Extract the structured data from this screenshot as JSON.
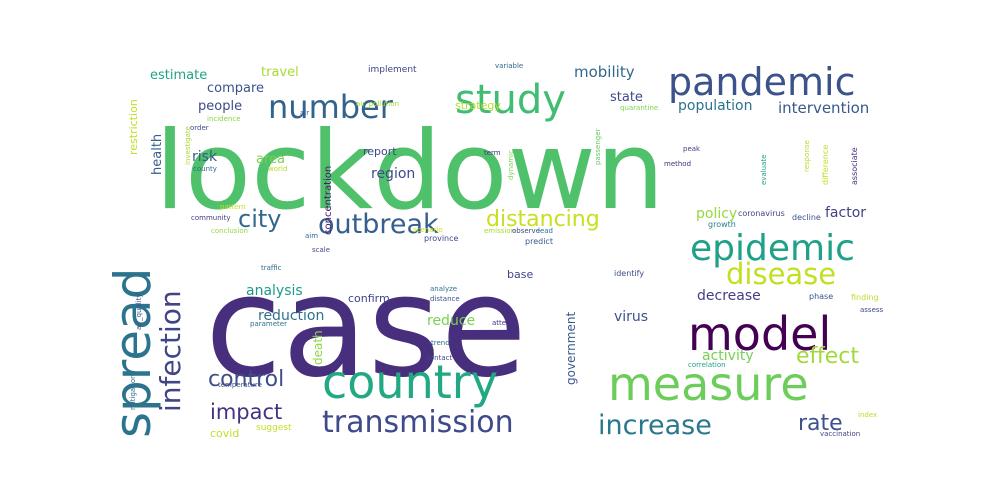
{
  "words": [
    {
      "text": "case",
      "color": "#472f7d"
    },
    {
      "text": "lockdown",
      "color": "#4fc16b"
    },
    {
      "text": "country",
      "color": "#23a884"
    },
    {
      "text": "measure",
      "color": "#6ccd5a"
    },
    {
      "text": "spread",
      "color": "#2c738e"
    },
    {
      "text": "model",
      "color": "#440154"
    },
    {
      "text": "epidemic",
      "color": "#1fa187"
    },
    {
      "text": "disease",
      "color": "#c2df23"
    },
    {
      "text": "pandemic",
      "color": "#3b528b"
    },
    {
      "text": "transmission",
      "color": "#3e4a89"
    },
    {
      "text": "number",
      "color": "#33638d"
    },
    {
      "text": "study",
      "color": "#40bd72"
    },
    {
      "text": "outbreak",
      "color": "#355f8d"
    },
    {
      "text": "infection",
      "color": "#414487"
    },
    {
      "text": "increase",
      "color": "#2a788e"
    },
    {
      "text": "effect",
      "color": "#a0da39"
    },
    {
      "text": "distancing",
      "color": "#c8e020"
    },
    {
      "text": "city",
      "color": "#31688e"
    },
    {
      "text": "control",
      "color": "#3d4e8a"
    },
    {
      "text": "impact",
      "color": "#46327e"
    },
    {
      "text": "rate",
      "color": "#3b528b"
    },
    {
      "text": "population",
      "color": "#2c728e"
    },
    {
      "text": "intervention",
      "color": "#38598c"
    },
    {
      "text": "mobility",
      "color": "#31688e"
    },
    {
      "text": "analysis",
      "color": "#1f9a8a"
    },
    {
      "text": "reduction",
      "color": "#2d708e"
    },
    {
      "text": "region",
      "color": "#3e4989"
    },
    {
      "text": "reduce",
      "color": "#7ad151"
    },
    {
      "text": "decrease",
      "color": "#433e85"
    },
    {
      "text": "activity",
      "color": "#75d054"
    },
    {
      "text": "virus",
      "color": "#3b528b"
    },
    {
      "text": "policy",
      "color": "#95d840"
    },
    {
      "text": "factor",
      "color": "#424086"
    },
    {
      "text": "government",
      "color": "#38598c"
    },
    {
      "text": "state",
      "color": "#3f4788"
    },
    {
      "text": "strategy",
      "color": "#b5de2b"
    },
    {
      "text": "people",
      "color": "#3e4a89"
    },
    {
      "text": "risk",
      "color": "#375a8c"
    },
    {
      "text": "area",
      "color": "#7ad151"
    },
    {
      "text": "estimate",
      "color": "#20a386"
    },
    {
      "text": "compare",
      "color": "#3b528b"
    },
    {
      "text": "health",
      "color": "#355f8d"
    },
    {
      "text": "travel",
      "color": "#a8db34"
    },
    {
      "text": "restriction",
      "color": "#bddf26"
    },
    {
      "text": "report",
      "color": "#3e4989"
    },
    {
      "text": "concentration",
      "color": "#48186a"
    },
    {
      "text": "death",
      "color": "#8fd744"
    },
    {
      "text": "confirm",
      "color": "#404688"
    },
    {
      "text": "base",
      "color": "#3f4889"
    },
    {
      "text": "covid",
      "color": "#bddf26"
    },
    {
      "text": "suggest",
      "color": "#c2df23"
    },
    {
      "text": "implement",
      "color": "#414487"
    },
    {
      "text": "variable",
      "color": "#31688e"
    },
    {
      "text": "quarantine",
      "color": "#7fd34e"
    },
    {
      "text": "air",
      "color": "#39568c"
    },
    {
      "text": "air_pollution",
      "color": "#a2da37"
    },
    {
      "text": "incidence",
      "color": "#8bd646"
    },
    {
      "text": "order",
      "color": "#3e4a89"
    },
    {
      "text": "investigate",
      "color": "#a8db34"
    },
    {
      "text": "county",
      "color": "#2f6c8e"
    },
    {
      "text": "world",
      "color": "#b8de29"
    },
    {
      "text": "term",
      "color": "#46337f"
    },
    {
      "text": "dynamic",
      "color": "#7ad151"
    },
    {
      "text": "passenger",
      "color": "#65cb5e"
    },
    {
      "text": "peak",
      "color": "#433e85"
    },
    {
      "text": "method",
      "color": "#46317e"
    },
    {
      "text": "evaluate",
      "color": "#1fa287"
    },
    {
      "text": "response",
      "color": "#b5de2b"
    },
    {
      "text": "difference",
      "color": "#bddf26"
    },
    {
      "text": "associate",
      "color": "#472d7b"
    },
    {
      "text": "pattern",
      "color": "#c2df23"
    },
    {
      "text": "community",
      "color": "#433e85"
    },
    {
      "text": "conclusion",
      "color": "#95d840"
    },
    {
      "text": "aim",
      "color": "#31688e"
    },
    {
      "text": "scenario",
      "color": "#d2e21b"
    },
    {
      "text": "emission",
      "color": "#a8db34"
    },
    {
      "text": "observe",
      "color": "#3e4989"
    },
    {
      "text": "lead",
      "color": "#2a788e"
    },
    {
      "text": "coronavirus",
      "color": "#414487"
    },
    {
      "text": "growth",
      "color": "#27808e"
    },
    {
      "text": "decline",
      "color": "#3b528b"
    },
    {
      "text": "province",
      "color": "#3f4889"
    },
    {
      "text": "predict",
      "color": "#38598c"
    },
    {
      "text": "scale",
      "color": "#3e4a89"
    },
    {
      "text": "traffic",
      "color": "#2f6c8e"
    },
    {
      "text": "identify",
      "color": "#3e4989"
    },
    {
      "text": "analyze",
      "color": "#2c728e"
    },
    {
      "text": "distance",
      "color": "#39568c"
    },
    {
      "text": "phase",
      "color": "#3b528b"
    },
    {
      "text": "finding",
      "color": "#b8de29"
    },
    {
      "text": "assess",
      "color": "#3e4989"
    },
    {
      "text": "attect",
      "color": "#46327e"
    },
    {
      "text": "parameter",
      "color": "#2c728e"
    },
    {
      "text": "trend",
      "color": "#31688e"
    },
    {
      "text": "contact",
      "color": "#3e4a89"
    },
    {
      "text": "temperature",
      "color": "#3b528b"
    },
    {
      "text": "air_quality",
      "color": "#3b528b"
    },
    {
      "text": "mitigation",
      "color": "#2c728e"
    },
    {
      "text": "correlation",
      "color": "#1fa187"
    },
    {
      "text": "index",
      "color": "#b5de2b"
    },
    {
      "text": "vaccination",
      "color": "#414487"
    }
  ]
}
